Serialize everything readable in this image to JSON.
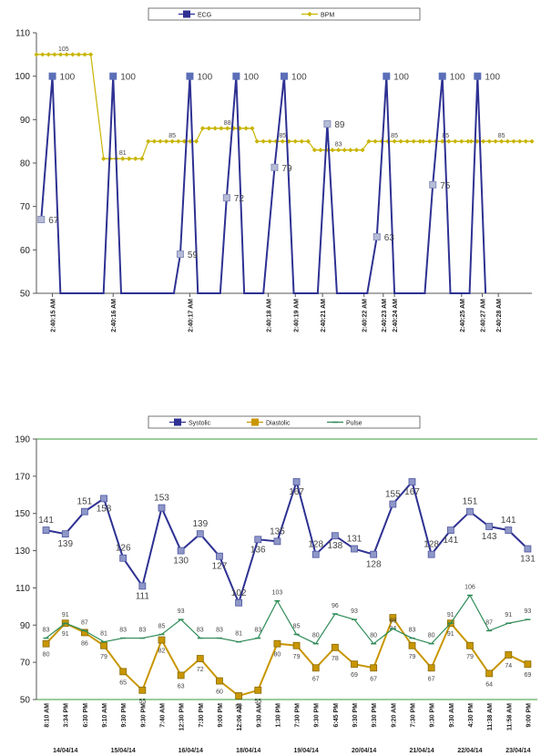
{
  "chart_data": [
    {
      "type": "line",
      "legend_position": "top",
      "grid": false,
      "ylim": [
        50,
        110
      ],
      "yticks": [
        "50",
        "60",
        "70",
        "80",
        "90",
        "100",
        "110"
      ],
      "x_labels": [
        "2:40:15 AM",
        "2:40:16 AM",
        "2:40:17 AM",
        "2:40:18 AM",
        "2:40:19 AM",
        "2:40:21 AM",
        "2:40:22 AM",
        "2:40:23 AM",
        "2:40:24 AM",
        "2:40:25 AM",
        "2:40:27 AM",
        "2:40:28 AM"
      ],
      "series": [
        {
          "name": "ECG",
          "color": "#2e3192",
          "marker": "square",
          "points": [
            [
              0.3,
              67
            ],
            [
              1.0,
              100
            ],
            [
              1.5,
              50
            ],
            [
              4.2,
              50
            ],
            [
              4.8,
              100
            ],
            [
              5.3,
              50
            ],
            [
              8.6,
              50
            ],
            [
              9.0,
              59
            ],
            [
              9.6,
              100
            ],
            [
              10.1,
              50
            ],
            [
              11.5,
              50
            ],
            [
              11.9,
              72
            ],
            [
              12.5,
              100
            ],
            [
              13.0,
              50
            ],
            [
              14.2,
              50
            ],
            [
              14.9,
              79
            ],
            [
              15.5,
              100
            ],
            [
              16.1,
              50
            ],
            [
              17.6,
              50
            ],
            [
              18.2,
              89
            ],
            [
              18.8,
              50
            ],
            [
              20.7,
              50
            ],
            [
              21.3,
              63
            ],
            [
              21.9,
              100
            ],
            [
              22.4,
              50
            ],
            [
              24.3,
              50
            ],
            [
              24.8,
              75
            ],
            [
              25.4,
              100
            ],
            [
              25.9,
              50
            ],
            [
              27.1,
              50
            ],
            [
              27.6,
              100
            ],
            [
              28.1,
              50
            ]
          ],
          "labels": [
            {
              "i": 0,
              "text": "67"
            },
            {
              "i": 1,
              "text": "100"
            },
            {
              "i": 4,
              "text": "100"
            },
            {
              "i": 7,
              "text": "59"
            },
            {
              "i": 8,
              "text": "100"
            },
            {
              "i": 11,
              "text": "72"
            },
            {
              "i": 12,
              "text": "100"
            },
            {
              "i": 15,
              "text": "79"
            },
            {
              "i": 16,
              "text": "100"
            },
            {
              "i": 19,
              "text": "89"
            },
            {
              "i": 22,
              "text": "63"
            },
            {
              "i": 23,
              "text": "100"
            },
            {
              "i": 26,
              "text": "75"
            },
            {
              "i": 27,
              "text": "100"
            },
            {
              "i": 30,
              "text": "100"
            }
          ]
        },
        {
          "name": "BPM",
          "color": "#c8b400",
          "marker": "diamond",
          "levels": [
            {
              "x0": 0.0,
              "x1": 3.4,
              "y": 105,
              "label": "105"
            },
            {
              "x0": 3.4,
              "x1": 3.6,
              "y": null,
              "label": ""
            },
            {
              "x0": 4.2,
              "x1": 6.6,
              "y": 81,
              "label": "81"
            },
            {
              "x0": 7.0,
              "x1": 10.0,
              "y": 85,
              "label": "85"
            },
            {
              "x0": 10.4,
              "x1": 13.5,
              "y": 88,
              "label": "88"
            },
            {
              "x0": 13.8,
              "x1": 17.0,
              "y": 85,
              "label": "85"
            },
            {
              "x0": 17.4,
              "x1": 20.4,
              "y": 83,
              "label": "83"
            },
            {
              "x0": 20.8,
              "x1": 24.0,
              "y": 85,
              "label": "85"
            },
            {
              "x0": 24.2,
              "x1": 27.0,
              "y": 85,
              "label": "85"
            },
            {
              "x0": 27.2,
              "x1": 31.0,
              "y": 85,
              "label": "85"
            }
          ]
        }
      ]
    },
    {
      "type": "line",
      "legend_position": "top",
      "grid": false,
      "ylim": [
        50,
        190
      ],
      "yticks": [
        "50",
        "70",
        "90",
        "110",
        "130",
        "150",
        "170",
        "190"
      ],
      "categories": [
        "8:10 AM",
        "3:34 PM",
        "6:30 PM",
        "9:10 AM",
        "9:30 PM",
        "9:30 PM",
        "7:40 AM",
        "12:30 PM",
        "7:30 PM",
        "9:00 PM",
        "12:06 AM",
        "9:30 AM",
        "1:30 PM",
        "7:30 PM",
        "9:30 PM",
        "6:45 PM",
        "9:30 PM",
        "9:30 PM",
        "9:20 AM",
        "7:30 PM",
        "9:30 PM",
        "9:30 AM",
        "4:30 PM",
        "11:38 AM",
        "11:58 AM",
        "9:00 PM"
      ],
      "dates": [
        {
          "label": "14/04/14",
          "center": 1
        },
        {
          "label": "15/04/14",
          "center": 4
        },
        {
          "label": "16/04/14",
          "center": 7.5
        },
        {
          "label": "18/04/14",
          "center": 10.5
        },
        {
          "label": "19/04/14",
          "center": 13.5
        },
        {
          "label": "20/04/14",
          "center": 16.5
        },
        {
          "label": "21/04/14",
          "center": 19.5
        },
        {
          "label": "22/04/14",
          "center": 22
        },
        {
          "label": "23/04/14",
          "center": 24.5
        }
      ],
      "series": [
        {
          "name": "Systolic",
          "color": "#2e3192",
          "marker": "square",
          "values": [
            141,
            139,
            151,
            158,
            126,
            111,
            153,
            130,
            139,
            127,
            102,
            136,
            135,
            167,
            128,
            138,
            131,
            128,
            155,
            167,
            128,
            141,
            151,
            143,
            141,
            131
          ]
        },
        {
          "name": "Diastolic",
          "color": "#c89600",
          "marker": "square",
          "values": [
            80,
            91,
            86,
            79,
            65,
            55,
            82,
            63,
            72,
            60,
            52,
            55,
            80,
            79,
            67,
            78,
            69,
            67,
            94,
            79,
            67,
            91,
            79,
            64,
            74,
            69
          ]
        },
        {
          "name": "Pulse",
          "color": "#2e8b57",
          "marker": "dash",
          "values": [
            83,
            91,
            87,
            81,
            83,
            83,
            85,
            93,
            83,
            83,
            81,
            83,
            103,
            85,
            80,
            96,
            93,
            80,
            88,
            83,
            80,
            91,
            106,
            87,
            91,
            93
          ]
        }
      ]
    }
  ]
}
